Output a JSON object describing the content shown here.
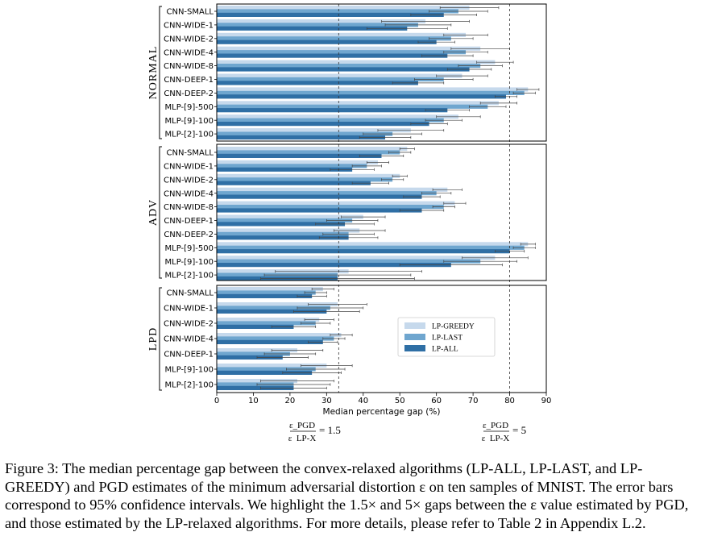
{
  "chart_data": {
    "type": "bar",
    "orientation": "horizontal",
    "xlabel": "Median percentage gap (%)",
    "xlim": [
      0,
      90
    ],
    "xticks": [
      0,
      10,
      20,
      30,
      40,
      50,
      60,
      70,
      80,
      90
    ],
    "legend": {
      "placement": "right-center of bottom panel",
      "entries": [
        "LP-GREEDY",
        "LP-LAST",
        "LP-ALL"
      ]
    },
    "series_colors": {
      "LP-GREEDY": "#c6d9ec",
      "LP-LAST": "#6fa6cf",
      "LP-ALL": "#2f6fa5"
    },
    "reference_lines": [
      {
        "x": 33.3,
        "label": "ε_PGD / ε_LP-X = 1.5"
      },
      {
        "x": 80,
        "label": "ε_PGD / ε_LP-X = 5"
      }
    ],
    "panels": [
      {
        "name": "NORMAL",
        "categories": [
          "CNN-SMALL",
          "CNN-WIDE-1",
          "CNN-WIDE-2",
          "CNN-WIDE-4",
          "CNN-WIDE-8",
          "CNN-DEEP-1",
          "CNN-DEEP-2",
          "MLP-[9]-500",
          "MLP-[9]-100",
          "MLP-[2]-100"
        ],
        "series": [
          {
            "name": "LP-GREEDY",
            "values": [
              69,
              57,
              68,
              72,
              76,
              67,
              85,
              77,
              66,
              53
            ],
            "err": [
              8,
              12,
              6,
              8,
              5,
              7,
              3,
              5,
              6,
              9
            ]
          },
          {
            "name": "LP-LAST",
            "values": [
              66,
              55,
              64,
              68,
              72,
              62,
              84,
              74,
              62,
              48
            ],
            "err": [
              8,
              9,
              6,
              6,
              6,
              8,
              3,
              5,
              5,
              8
            ]
          },
          {
            "name": "LP-ALL",
            "values": [
              62,
              52,
              60,
              63,
              69,
              55,
              79,
              63,
              58,
              46
            ],
            "err": [
              9,
              11,
              5,
              7,
              6,
              7,
              3,
              6,
              5,
              7
            ]
          }
        ]
      },
      {
        "name": "ADV",
        "categories": [
          "CNN-SMALL",
          "CNN-WIDE-1",
          "CNN-WIDE-2",
          "CNN-WIDE-4",
          "CNN-WIDE-8",
          "CNN-DEEP-1",
          "CNN-DEEP-2",
          "MLP-[9]-500",
          "MLP-[9]-100",
          "MLP-[2]-100"
        ],
        "series": [
          {
            "name": "LP-GREEDY",
            "values": [
              52,
              44,
              50,
              63,
              65,
              40,
              39,
              85,
              76,
              36
            ],
            "err": [
              2,
              3,
              2,
              4,
              3,
              6,
              7,
              2,
              9,
              20
            ]
          },
          {
            "name": "LP-LAST",
            "values": [
              50,
              41,
              48,
              60,
              62,
              37,
              36,
              84,
              72,
              33
            ],
            "err": [
              3,
              4,
              3,
              4,
              3,
              7,
              7,
              3,
              10,
              20
            ]
          },
          {
            "name": "LP-ALL",
            "values": [
              45,
              37,
              42,
              56,
              56,
              35,
              36,
              80,
              64,
              33
            ],
            "err": [
              6,
              6,
              5,
              5,
              6,
              8,
              8,
              4,
              14,
              21
            ]
          }
        ]
      },
      {
        "name": "LPD",
        "categories": [
          "CNN-SMALL",
          "CNN-WIDE-1",
          "CNN-WIDE-2",
          "CNN-WIDE-4",
          "CNN-DEEP-1",
          "MLP-[9]-100",
          "MLP-[2]-100"
        ],
        "series": [
          {
            "name": "LP-GREEDY",
            "values": [
              29,
              33,
              28,
              34,
              22,
              30,
              22
            ],
            "err": [
              3,
              8,
              4,
              3,
              7,
              7,
              10
            ]
          },
          {
            "name": "LP-LAST",
            "values": [
              27,
              31,
              27,
              32,
              20,
              27,
              21
            ],
            "err": [
              3,
              9,
              4,
              3,
              7,
              8,
              10
            ]
          },
          {
            "name": "LP-ALL",
            "values": [
              26,
              30,
              21,
              29,
              18,
              26,
              21
            ],
            "err": [
              4,
              9,
              6,
              4,
              7,
              8,
              9
            ]
          }
        ]
      }
    ]
  },
  "caption": {
    "text": "Figure 3: The median percentage gap between the convex-relaxed algorithms (LP-ALL, LP-LAST, and LP-GREEDY) and PGD estimates of the minimum adversarial distortion ε on ten samples of MNIST. The error bars correspond to 95% confidence intervals. We highlight the 1.5× and 5× gaps between the ε value estimated by PGD, and those estimated by the LP-relaxed algorithms. For more details, please refer to Table 2 in Appendix L.2."
  }
}
